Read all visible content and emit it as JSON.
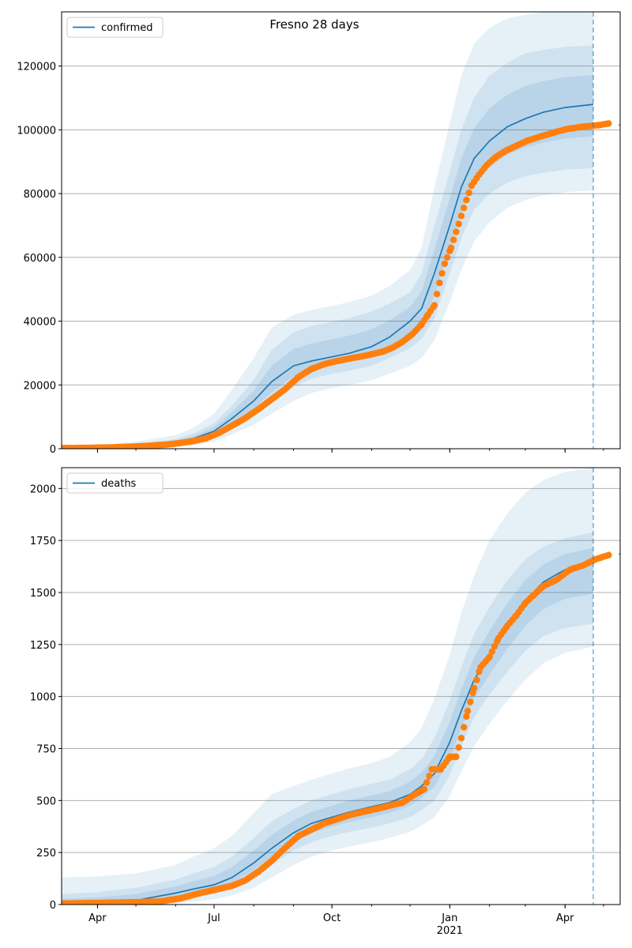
{
  "title": "Fresno 28 days",
  "x_ticks": [
    {
      "date": "2020-04-01",
      "label": "Apr",
      "sub": ""
    },
    {
      "date": "2020-07-01",
      "label": "Jul",
      "sub": ""
    },
    {
      "date": "2020-10-01",
      "label": "Oct",
      "sub": ""
    },
    {
      "date": "2021-01-01",
      "label": "Jan",
      "sub": "2021"
    },
    {
      "date": "2021-04-01",
      "label": "Apr",
      "sub": ""
    }
  ],
  "xlim": [
    "2020-03-04",
    "2021-05-14"
  ],
  "forecast_date": "2021-04-23",
  "colors": {
    "model": "#1f77b4",
    "observed": "#ff7f0e",
    "band": "#1f77b4",
    "grid": "#b0b0b0"
  },
  "chart_data": [
    {
      "type": "line",
      "name": "confirmed",
      "legend": "top-left",
      "grid": "horizontal",
      "ylim": [
        0,
        137000
      ],
      "y_ticks": [
        0,
        20000,
        40000,
        60000,
        80000,
        100000,
        120000
      ],
      "model_x": [
        "2020-03-04",
        "2020-04-01",
        "2020-05-01",
        "2020-06-01",
        "2020-06-15",
        "2020-07-01",
        "2020-07-15",
        "2020-08-01",
        "2020-08-15",
        "2020-09-01",
        "2020-09-15",
        "2020-10-01",
        "2020-10-15",
        "2020-11-01",
        "2020-11-15",
        "2020-12-01",
        "2020-12-10",
        "2020-12-20",
        "2021-01-01",
        "2021-01-10",
        "2021-01-20",
        "2021-02-01",
        "2021-02-15",
        "2021-03-01",
        "2021-03-15",
        "2021-04-01",
        "2021-04-23"
      ],
      "model_y": [
        300,
        400,
        900,
        2000,
        3200,
        5500,
        9500,
        15000,
        21000,
        26000,
        27500,
        28800,
        30000,
        32000,
        35000,
        40000,
        44000,
        55000,
        70000,
        82000,
        91000,
        96500,
        101000,
        103500,
        105500,
        107000,
        108000
      ],
      "bands": [
        {
          "upper": [
            500,
            700,
            1500,
            3000,
            4800,
            8000,
            13500,
            21500,
            31000,
            36500,
            38500,
            39800,
            41000,
            43000,
            45500,
            49000,
            55000,
            70000,
            87000,
            100000,
            110000,
            117000,
            121000,
            124000,
            125000,
            126000,
            126500
          ],
          "lower": [
            100,
            200,
            500,
            1200,
            2000,
            3500,
            6500,
            10000,
            14500,
            19500,
            22000,
            23500,
            24500,
            26000,
            28500,
            31500,
            34500,
            41000,
            55000,
            66000,
            75000,
            80000,
            83500,
            85500,
            86500,
            87500,
            88000
          ]
        },
        {
          "upper": [
            800,
            1100,
            2200,
            4200,
            6600,
            11000,
            18500,
            28500,
            38000,
            42000,
            43500,
            44800,
            46000,
            48000,
            51000,
            56000,
            63000,
            82000,
            102000,
            117000,
            127000,
            132000,
            135000,
            136000,
            137000,
            137000,
            137000
          ],
          "lower": [
            0,
            50,
            200,
            600,
            1200,
            2200,
            4500,
            7500,
            11000,
            15000,
            17500,
            19000,
            20000,
            21500,
            23500,
            26000,
            28500,
            34000,
            46000,
            56000,
            65000,
            71000,
            75500,
            78000,
            79500,
            80500,
            81000
          ]
        }
      ],
      "obs_y_start": 200,
      "obs_y": [
        200,
        250,
        400,
        600,
        900,
        1300,
        1800,
        2400,
        3300,
        5000,
        7200,
        9500,
        12500,
        15500,
        18500,
        22500,
        25000,
        26500,
        27500,
        28300,
        29000,
        29600,
        30500,
        31800,
        33500,
        36000,
        39000,
        42000,
        45000,
        52000,
        58000,
        63000,
        68000,
        73000,
        78000,
        82500,
        86000,
        89000,
        91500,
        93500,
        95000,
        96500,
        97800,
        99000,
        100200,
        101000,
        101500,
        102000
      ],
      "obs_x": [
        "2020-03-04",
        "2020-03-20",
        "2020-04-10",
        "2020-04-25",
        "2020-05-10",
        "2020-05-25",
        "2020-06-05",
        "2020-06-15",
        "2020-06-25",
        "2020-07-05",
        "2020-07-15",
        "2020-07-25",
        "2020-08-05",
        "2020-08-15",
        "2020-08-25",
        "2020-09-05",
        "2020-09-15",
        "2020-09-25",
        "2020-10-05",
        "2020-10-15",
        "2020-10-25",
        "2020-11-01",
        "2020-11-10",
        "2020-11-18",
        "2020-11-25",
        "2020-12-03",
        "2020-12-10",
        "2020-12-15",
        "2020-12-20",
        "2020-12-24",
        "2020-12-28",
        "2021-01-02",
        "2021-01-06",
        "2021-01-10",
        "2021-01-14",
        "2021-01-18",
        "2021-01-24",
        "2021-01-30",
        "2021-02-06",
        "2021-02-14",
        "2021-02-22",
        "2021-03-02",
        "2021-03-12",
        "2021-03-22",
        "2021-04-02",
        "2021-04-15",
        "2021-04-28",
        "2021-05-05"
      ],
      "post_y": [
        101500,
        101500
      ]
    },
    {
      "type": "line",
      "name": "deaths",
      "legend": "top-left",
      "grid": "horizontal",
      "ylim": [
        0,
        2100
      ],
      "y_ticks": [
        0,
        250,
        500,
        750,
        1000,
        1250,
        1500,
        1750,
        2000
      ],
      "model_x": [
        "2020-03-04",
        "2020-04-01",
        "2020-05-01",
        "2020-06-01",
        "2020-06-15",
        "2020-07-01",
        "2020-07-15",
        "2020-08-01",
        "2020-08-15",
        "2020-09-01",
        "2020-09-15",
        "2020-10-01",
        "2020-10-15",
        "2020-11-01",
        "2020-11-15",
        "2020-12-01",
        "2020-12-10",
        "2020-12-20",
        "2021-01-01",
        "2021-01-10",
        "2021-01-20",
        "2021-02-01",
        "2021-02-15",
        "2021-03-01",
        "2021-03-15",
        "2021-04-01",
        "2021-04-23"
      ],
      "model_y": [
        5,
        8,
        20,
        55,
        75,
        95,
        130,
        200,
        270,
        345,
        390,
        420,
        445,
        470,
        490,
        530,
        570,
        630,
        780,
        930,
        1080,
        1200,
        1340,
        1460,
        1550,
        1610,
        1640
      ],
      "bands": [
        {
          "upper": [
            50,
            60,
            80,
            120,
            150,
            180,
            230,
            320,
            400,
            460,
            500,
            530,
            555,
            580,
            600,
            650,
            700,
            800,
            980,
            1140,
            1300,
            1430,
            1560,
            1660,
            1720,
            1760,
            1790
          ],
          "lower": [
            0,
            0,
            5,
            20,
            35,
            50,
            80,
            130,
            190,
            260,
            300,
            330,
            350,
            370,
            390,
            420,
            455,
            500,
            620,
            760,
            900,
            1010,
            1120,
            1220,
            1290,
            1330,
            1350
          ]
        },
        {
          "upper": [
            130,
            135,
            150,
            190,
            230,
            270,
            330,
            440,
            530,
            570,
            600,
            630,
            655,
            680,
            710,
            780,
            850,
            990,
            1200,
            1400,
            1580,
            1750,
            1880,
            1980,
            2040,
            2080,
            2100
          ],
          "lower": [
            0,
            0,
            0,
            5,
            15,
            25,
            45,
            80,
            130,
            190,
            230,
            260,
            280,
            300,
            320,
            350,
            380,
            420,
            520,
            640,
            760,
            870,
            980,
            1080,
            1160,
            1210,
            1240
          ]
        }
      ],
      "obs_x": [
        "2020-03-04",
        "2020-04-01",
        "2020-04-20",
        "2020-05-05",
        "2020-05-20",
        "2020-06-05",
        "2020-06-20",
        "2020-07-01",
        "2020-07-15",
        "2020-07-25",
        "2020-08-05",
        "2020-08-15",
        "2020-08-25",
        "2020-09-05",
        "2020-09-15",
        "2020-09-25",
        "2020-10-05",
        "2020-10-15",
        "2020-10-25",
        "2020-11-05",
        "2020-11-15",
        "2020-11-25",
        "2020-12-05",
        "2020-12-12",
        "2020-12-18",
        "2020-12-25",
        "2021-01-01",
        "2021-01-06",
        "2021-01-10",
        "2021-01-15",
        "2021-01-20",
        "2021-01-25",
        "2021-02-01",
        "2021-02-08",
        "2021-02-15",
        "2021-02-22",
        "2021-03-01",
        "2021-03-08",
        "2021-03-15",
        "2021-03-25",
        "2021-04-05",
        "2021-04-15",
        "2021-04-25",
        "2021-05-05"
      ],
      "obs_y": [
        5,
        8,
        10,
        12,
        15,
        30,
        55,
        70,
        90,
        115,
        160,
        210,
        270,
        330,
        360,
        390,
        410,
        430,
        445,
        460,
        475,
        490,
        530,
        555,
        650,
        650,
        710,
        710,
        800,
        930,
        1040,
        1140,
        1190,
        1280,
        1340,
        1390,
        1450,
        1490,
        1530,
        1560,
        1610,
        1630,
        1660,
        1680
      ],
      "post_y": [
        1685,
        1685
      ]
    }
  ]
}
